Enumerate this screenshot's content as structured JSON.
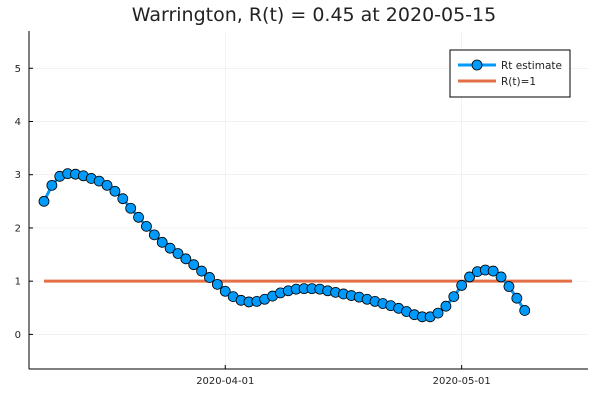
{
  "chart_data": {
    "type": "line",
    "title": "Warrington, R(t) = 0.45 at 2020-05-15",
    "xlabel": "",
    "ylabel": "",
    "x_start": "2020-03-09",
    "x_end": "2020-05-15",
    "x_ticks": [
      {
        "date": "2020-04-01",
        "label": "2020-04-01"
      },
      {
        "date": "2020-05-01",
        "label": "2020-05-01"
      }
    ],
    "y_ticks": [
      0,
      1,
      2,
      3,
      4,
      5
    ],
    "ylim": [
      -0.65,
      5.7
    ],
    "grid": true,
    "legend_position": "top-right",
    "series": [
      {
        "name": "Rt estimate",
        "color": "#009AFA",
        "marker": "circle",
        "values": [
          2.5,
          2.8,
          2.97,
          3.02,
          3.01,
          2.98,
          2.93,
          2.88,
          2.8,
          2.69,
          2.55,
          2.37,
          2.2,
          2.03,
          1.87,
          1.73,
          1.62,
          1.52,
          1.42,
          1.31,
          1.19,
          1.07,
          0.94,
          0.81,
          0.71,
          0.64,
          0.61,
          0.62,
          0.66,
          0.72,
          0.78,
          0.82,
          0.85,
          0.86,
          0.86,
          0.85,
          0.82,
          0.79,
          0.76,
          0.73,
          0.7,
          0.66,
          0.62,
          0.58,
          0.54,
          0.49,
          0.43,
          0.37,
          0.33,
          0.33,
          0.4,
          0.53,
          0.71,
          0.92,
          1.08,
          1.18,
          1.21,
          1.19,
          1.08,
          0.9,
          0.68,
          0.45
        ]
      },
      {
        "name": "R(t)=1",
        "color": "#E26F46",
        "marker": "none",
        "values": [
          1,
          1
        ]
      }
    ]
  }
}
